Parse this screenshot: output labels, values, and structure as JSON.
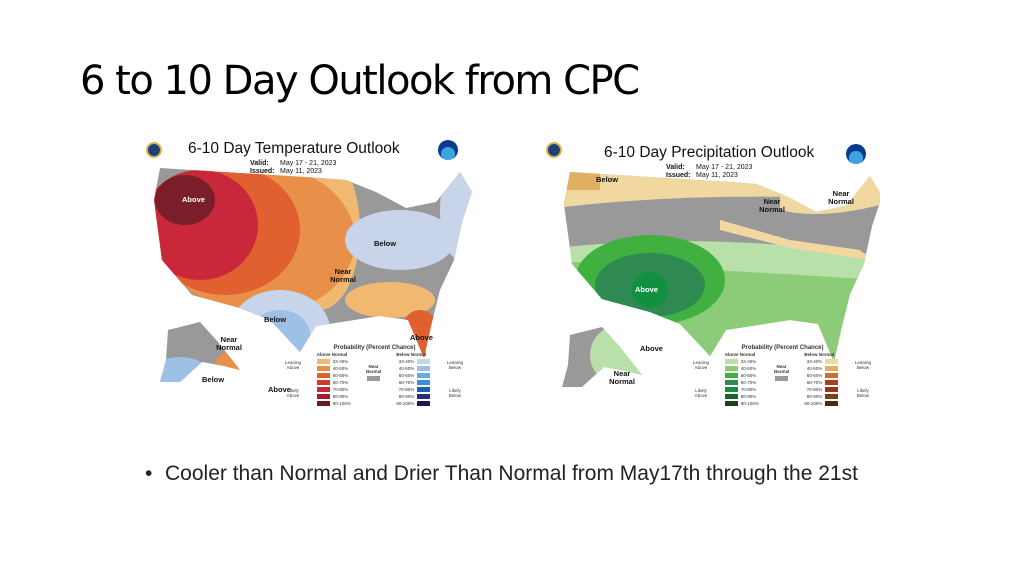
{
  "slide": {
    "title": "6 to 10 Day Outlook from CPC",
    "bullet": "Cooler than Normal and Drier Than Normal from May17th through the 21st"
  },
  "temperature": {
    "title": "6-10 Day Temperature Outlook",
    "valid_label": "Valid:",
    "valid": "May 17 - 21, 2023",
    "issued_label": "Issued:",
    "issued": "May 11, 2023",
    "labels": [
      "Above",
      "Below",
      "Near Normal",
      "Below",
      "Above",
      "Near Normal",
      "Below",
      "Above"
    ],
    "legend": {
      "title": "Probability (Percent Chance)",
      "above": "Above Normal",
      "below": "Below Normal",
      "near": "Near Normal",
      "leaning_above": "Leaning Above",
      "likely_above": "Likely Above",
      "leaning_below": "Leaning Below",
      "likely_below": "Likely Below",
      "ranges": [
        "33-40%",
        "40-50%",
        "50-60%",
        "60-70%",
        "70-80%",
        "80-90%",
        "90-100%"
      ],
      "above_colors": [
        "#f0b870",
        "#e8904a",
        "#e06030",
        "#d03a2a",
        "#c8283a",
        "#a02030",
        "#6a1a22"
      ],
      "below_colors": [
        "#c8d4ea",
        "#9cc0e6",
        "#6aaae0",
        "#3a90d8",
        "#1a60b0",
        "#2a2a80",
        "#1a1a50"
      ]
    }
  },
  "precipitation": {
    "title": "6-10 Day Precipitation Outlook",
    "valid_label": "Valid:",
    "valid": "May 17 - 21, 2023",
    "issued_label": "Issued:",
    "issued": "May 11, 2023",
    "labels": [
      "Below",
      "Near Normal",
      "Near Normal",
      "Above",
      "Above",
      "Near Normal"
    ],
    "legend": {
      "title": "Probability (Percent Chance)",
      "above": "Above Normal",
      "below": "Below Normal",
      "near": "Near Normal",
      "leaning_above": "Leaning Above",
      "likely_above": "Likely Above",
      "leaning_below": "Leaning Below",
      "likely_below": "Likely Below",
      "ranges": [
        "33-40%",
        "40-50%",
        "50-60%",
        "60-70%",
        "70-80%",
        "80-90%",
        "90-100%"
      ],
      "above_colors": [
        "#b8e0a8",
        "#8ccc78",
        "#40b040",
        "#2e8a50",
        "#119040",
        "#206030",
        "#1a4020"
      ],
      "below_colors": [
        "#f0d8a0",
        "#e0b060",
        "#c87030",
        "#a84020",
        "#a03020",
        "#7a4010",
        "#4a2a20"
      ]
    }
  }
}
